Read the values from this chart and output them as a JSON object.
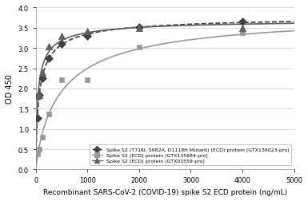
{
  "title": "",
  "xlabel": "Recombinant SARS-CoV-2 (COVID-19) spike S2 ECD protein (ng/mL)",
  "ylabel": "OD 450",
  "xlim": [
    0,
    5000
  ],
  "ylim": [
    0,
    4
  ],
  "yticks": [
    0,
    0.5,
    1.0,
    1.5,
    2.0,
    2.5,
    3.0,
    3.5,
    4.0
  ],
  "xticks": [
    0,
    1000,
    2000,
    3000,
    4000,
    5000
  ],
  "series1_label": "Spike S2 (T716I, S982A, D1118H Mutant) (ECD) protein (GTX136023-pro)",
  "series1_scatter_x": [
    31.25,
    62.5,
    125,
    250,
    500,
    1000,
    2000,
    4000
  ],
  "series1_scatter_y": [
    1.28,
    1.85,
    2.26,
    2.74,
    3.1,
    3.3,
    3.52,
    3.65
  ],
  "series1_color": "#404040",
  "series1_linestyle": "dashed",
  "series1_marker": "D",
  "series1_markersize": 5,
  "series2_label": "Spike S2 (ECD) protein (GTX135684-pro)",
  "series2_scatter_x": [
    31.25,
    62.5,
    125,
    250,
    500,
    1000,
    2000,
    4000
  ],
  "series2_scatter_y": [
    0.38,
    0.5,
    0.79,
    1.36,
    2.22,
    2.22,
    3.03,
    3.37
  ],
  "series2_color": "#999999",
  "series2_linestyle": "solid",
  "series2_marker": "s",
  "series2_markersize": 5,
  "series3_label": "Spike S2 (ECD) protein (GTX01559-pro)",
  "series3_scatter_x": [
    31.25,
    62.5,
    125,
    250,
    500,
    1000,
    2000,
    4000
  ],
  "series3_scatter_y": [
    1.82,
    1.85,
    2.4,
    3.05,
    3.3,
    3.42,
    3.5,
    3.49
  ],
  "series3_color": "#606060",
  "series3_linestyle": "solid",
  "series3_marker": "^",
  "series3_markersize": 6,
  "background_color": "#ffffff",
  "grid_color": "#cccccc"
}
